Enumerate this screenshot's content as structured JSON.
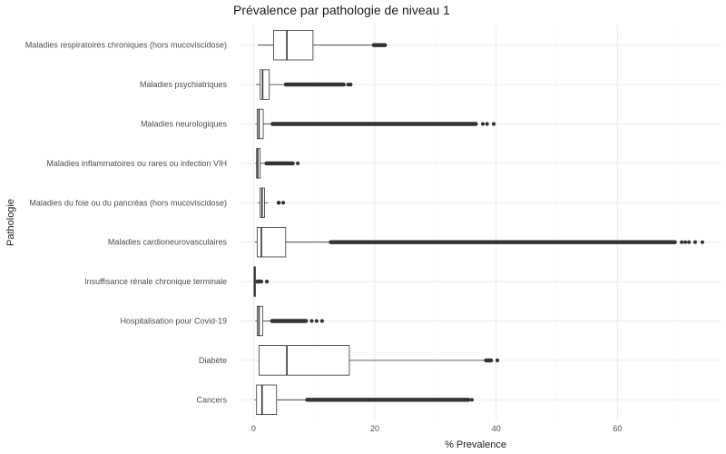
{
  "chart_data": {
    "type": "boxplot",
    "orientation": "horizontal",
    "title": "Prévalence par pathologie de niveau 1",
    "xlabel": "% Prevalence",
    "ylabel": "Pathologie",
    "xlim": [
      -2,
      77
    ],
    "x_ticks": [
      0,
      20,
      40,
      60
    ],
    "x_tick_labels": [
      "0",
      "20",
      "40",
      "60"
    ],
    "grid": true,
    "legend": "none",
    "categories": [
      {
        "name": "Maladies respiratoires chroniques (hors mucoviscidose)",
        "whisker_low": 0.7,
        "q1": 3.3,
        "median": 5.5,
        "q3": 9.8,
        "whisker_high": 19.5,
        "outliers_dense": [
          19.5,
          22.0
        ],
        "outliers": []
      },
      {
        "name": "Maladies psychiatriques",
        "whisker_low": 0.4,
        "q1": 1.1,
        "median": 1.5,
        "q3": 2.6,
        "whisker_high": 5.0,
        "outliers_dense": [
          5.0,
          15.2
        ],
        "outliers": [
          15.6,
          16.0
        ]
      },
      {
        "name": "Maladies neurologiques",
        "whisker_low": 0.3,
        "q1": 0.6,
        "median": 0.9,
        "q3": 1.6,
        "whisker_high": 2.8,
        "outliers_dense": [
          2.8,
          37.0
        ],
        "outliers": [
          37.8,
          38.5,
          39.6
        ]
      },
      {
        "name": "Maladies inflammatoires ou rares ou infection VIH",
        "whisker_low": 0.3,
        "q1": 0.5,
        "median": 0.7,
        "q3": 1.1,
        "whisker_high": 1.8,
        "outliers_dense": [
          1.8,
          6.8
        ],
        "outliers": [
          7.3
        ]
      },
      {
        "name": "Maladies du foie ou du pancréas (hors mucoviscidose)",
        "whisker_low": 0.7,
        "q1": 1.1,
        "median": 1.4,
        "q3": 1.8,
        "whisker_high": 2.4,
        "outliers_dense": [
          3.8,
          4.5
        ],
        "outliers": [
          4.9
        ]
      },
      {
        "name": "Maladies cardioneurovasculaires",
        "whisker_low": 0.2,
        "q1": 0.6,
        "median": 1.3,
        "q3": 5.3,
        "whisker_high": 12.4,
        "outliers_dense": [
          12.4,
          69.8
        ],
        "outliers": [
          70.6,
          71.2,
          71.8,
          72.8,
          74.0
        ]
      },
      {
        "name": "Insuffisance rénale chronique terminale",
        "whisker_low": 0.05,
        "q1": 0.1,
        "median": 0.15,
        "q3": 0.2,
        "whisker_high": 0.3,
        "outliers_dense": [
          0.3,
          1.6
        ],
        "outliers": [
          2.2
        ]
      },
      {
        "name": "Hospitalisation pour Covid-19",
        "whisker_low": 0.3,
        "q1": 0.6,
        "median": 0.9,
        "q3": 1.5,
        "whisker_high": 2.7,
        "outliers_dense": [
          2.7,
          9.0
        ],
        "outliers": [
          9.6,
          10.4,
          11.3
        ]
      },
      {
        "name": "Diabète",
        "whisker_low": 0.8,
        "q1": 0.9,
        "median": 5.5,
        "q3": 15.8,
        "whisker_high": 38.0,
        "outliers_dense": [
          38.0,
          39.5
        ],
        "outliers": [
          40.2
        ]
      },
      {
        "name": "Cancers",
        "whisker_low": 0.2,
        "q1": 0.5,
        "median": 1.4,
        "q3": 3.8,
        "whisker_high": 8.5,
        "outliers_dense": [
          8.5,
          35.8
        ],
        "outliers": [
          36.0
        ]
      }
    ]
  }
}
